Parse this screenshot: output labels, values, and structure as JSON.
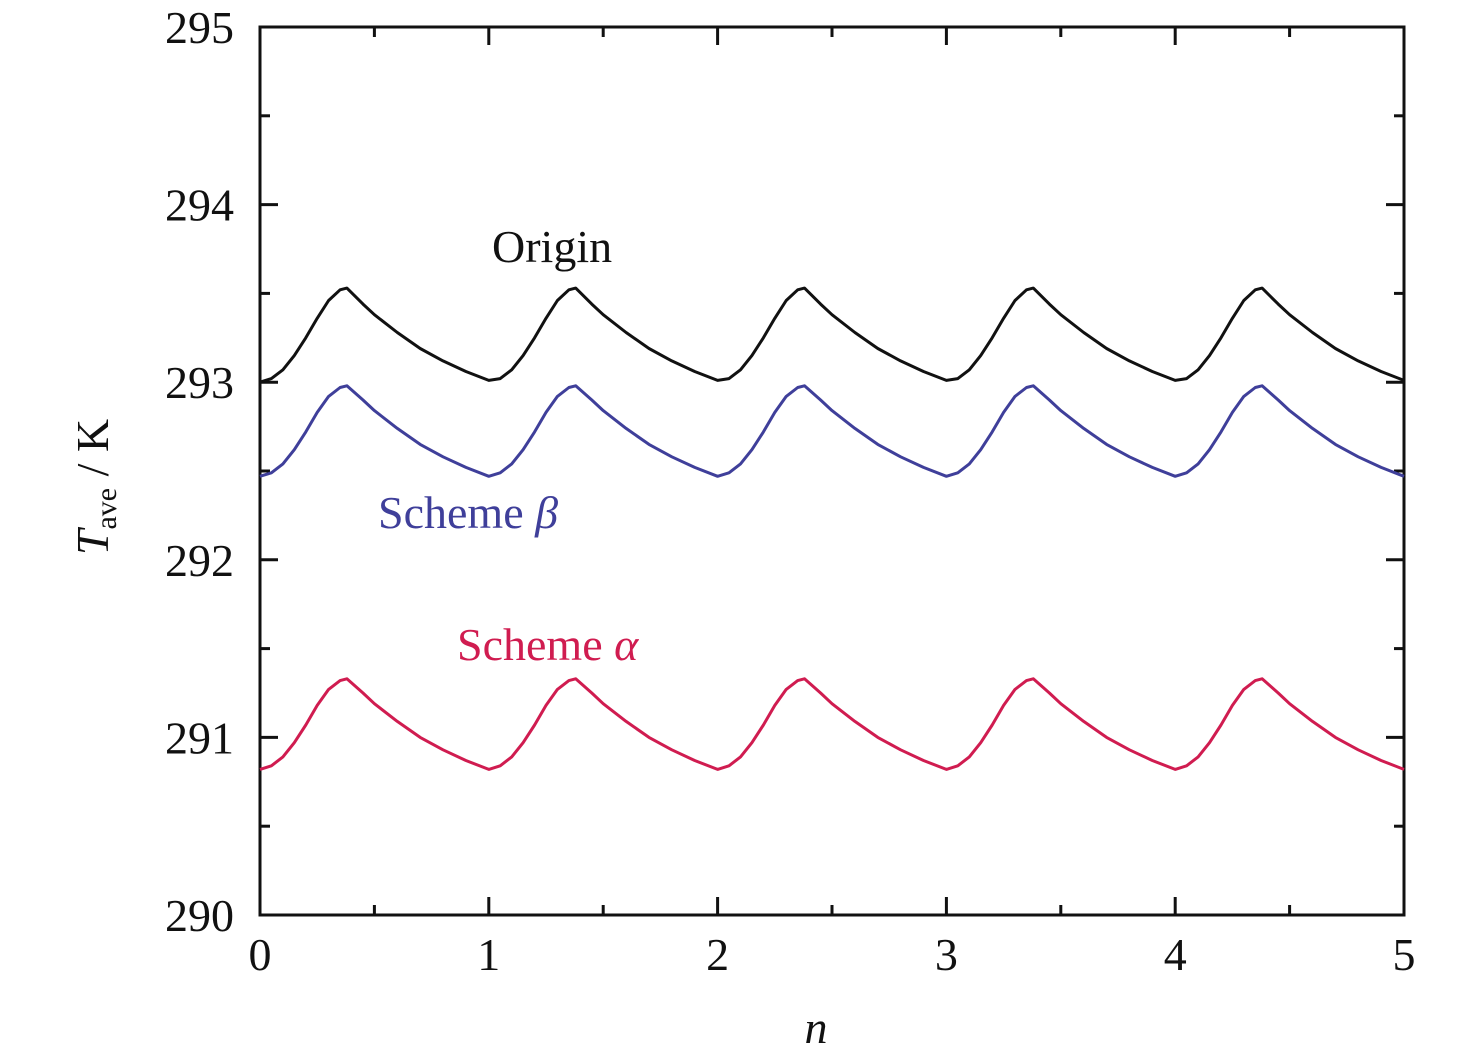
{
  "chart_data": {
    "type": "line",
    "xlabel": "n",
    "ylabel": {
      "symbol": "T",
      "subscript": "ave",
      "unit": " / K"
    },
    "xlim": [
      0,
      5
    ],
    "ylim": [
      290,
      295
    ],
    "x_ticks": [
      "0",
      "1",
      "2",
      "3",
      "4",
      "5"
    ],
    "y_ticks": [
      "290",
      "291",
      "292",
      "293",
      "294",
      "295"
    ],
    "grid": false,
    "legend": "none",
    "period": 1,
    "series": [
      {
        "name": "Origin",
        "label_text": "Origin",
        "label_symbol": "",
        "color": "#111111",
        "cycle_x": [
          0,
          0.05,
          0.1,
          0.15,
          0.2,
          0.25,
          0.3,
          0.35,
          0.38,
          0.45,
          0.5,
          0.6,
          0.7,
          0.8,
          0.9,
          1.0
        ],
        "cycle_y": [
          293.0,
          293.02,
          293.07,
          293.15,
          293.25,
          293.36,
          293.46,
          293.52,
          293.53,
          293.44,
          293.38,
          293.28,
          293.19,
          293.12,
          293.06,
          293.01
        ]
      },
      {
        "name": "Scheme β",
        "label_text": "Scheme ",
        "label_symbol": "β",
        "color": "#3f3f9a",
        "cycle_x": [
          0,
          0.05,
          0.1,
          0.15,
          0.2,
          0.25,
          0.3,
          0.35,
          0.38,
          0.45,
          0.5,
          0.6,
          0.7,
          0.8,
          0.9,
          1.0
        ],
        "cycle_y": [
          292.47,
          292.49,
          292.54,
          292.62,
          292.72,
          292.83,
          292.92,
          292.97,
          292.98,
          292.9,
          292.84,
          292.74,
          292.65,
          292.58,
          292.52,
          292.47
        ]
      },
      {
        "name": "Scheme α",
        "label_text": "Scheme ",
        "label_symbol": "α",
        "color": "#d01c50",
        "cycle_x": [
          0,
          0.05,
          0.1,
          0.15,
          0.2,
          0.25,
          0.3,
          0.35,
          0.38,
          0.45,
          0.5,
          0.6,
          0.7,
          0.8,
          0.9,
          1.0
        ],
        "cycle_y": [
          290.82,
          290.84,
          290.89,
          290.97,
          291.07,
          291.18,
          291.27,
          291.32,
          291.33,
          291.25,
          291.19,
          291.09,
          291.0,
          290.93,
          290.87,
          290.82
        ]
      }
    ]
  }
}
